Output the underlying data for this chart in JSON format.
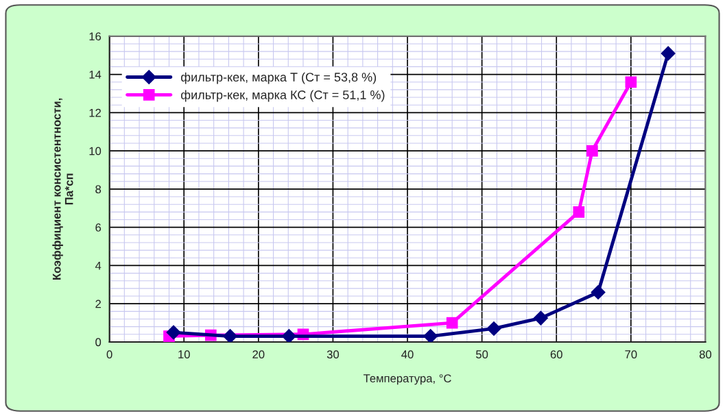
{
  "chart_data": {
    "type": "line",
    "xlabel": "Температура, °С",
    "ylabel": "Коэффициент консистентности,\nПа*сп",
    "xlim": [
      0,
      80
    ],
    "xticks": [
      0,
      10,
      20,
      30,
      40,
      50,
      60,
      70,
      80
    ],
    "ylim": [
      0,
      16
    ],
    "yticks": [
      0,
      2,
      4,
      6,
      8,
      10,
      12,
      14,
      16
    ],
    "grid": true,
    "legend": "top left",
    "line_style": "solid",
    "series": [
      {
        "name": "фильтр-кек, марка Т (Ст = 53,8 %)",
        "color": "#000080",
        "marker": "diamond",
        "x": [
          8.6,
          16.2,
          24.1,
          43.1,
          51.6,
          57.9,
          65.6,
          75
        ],
        "values": [
          0.5,
          0.3,
          0.3,
          0.3,
          0.7,
          1.25,
          2.6,
          15.1
        ]
      },
      {
        "name": "фильтр-кек, марка КС (Ст = 51,1 %)",
        "color": "#ff00ff",
        "marker": "square",
        "x": [
          8,
          13.6,
          26,
          46,
          63,
          64.8,
          70
        ],
        "values": [
          0.3,
          0.35,
          0.4,
          1.0,
          6.8,
          10.0,
          13.6
        ]
      }
    ]
  }
}
